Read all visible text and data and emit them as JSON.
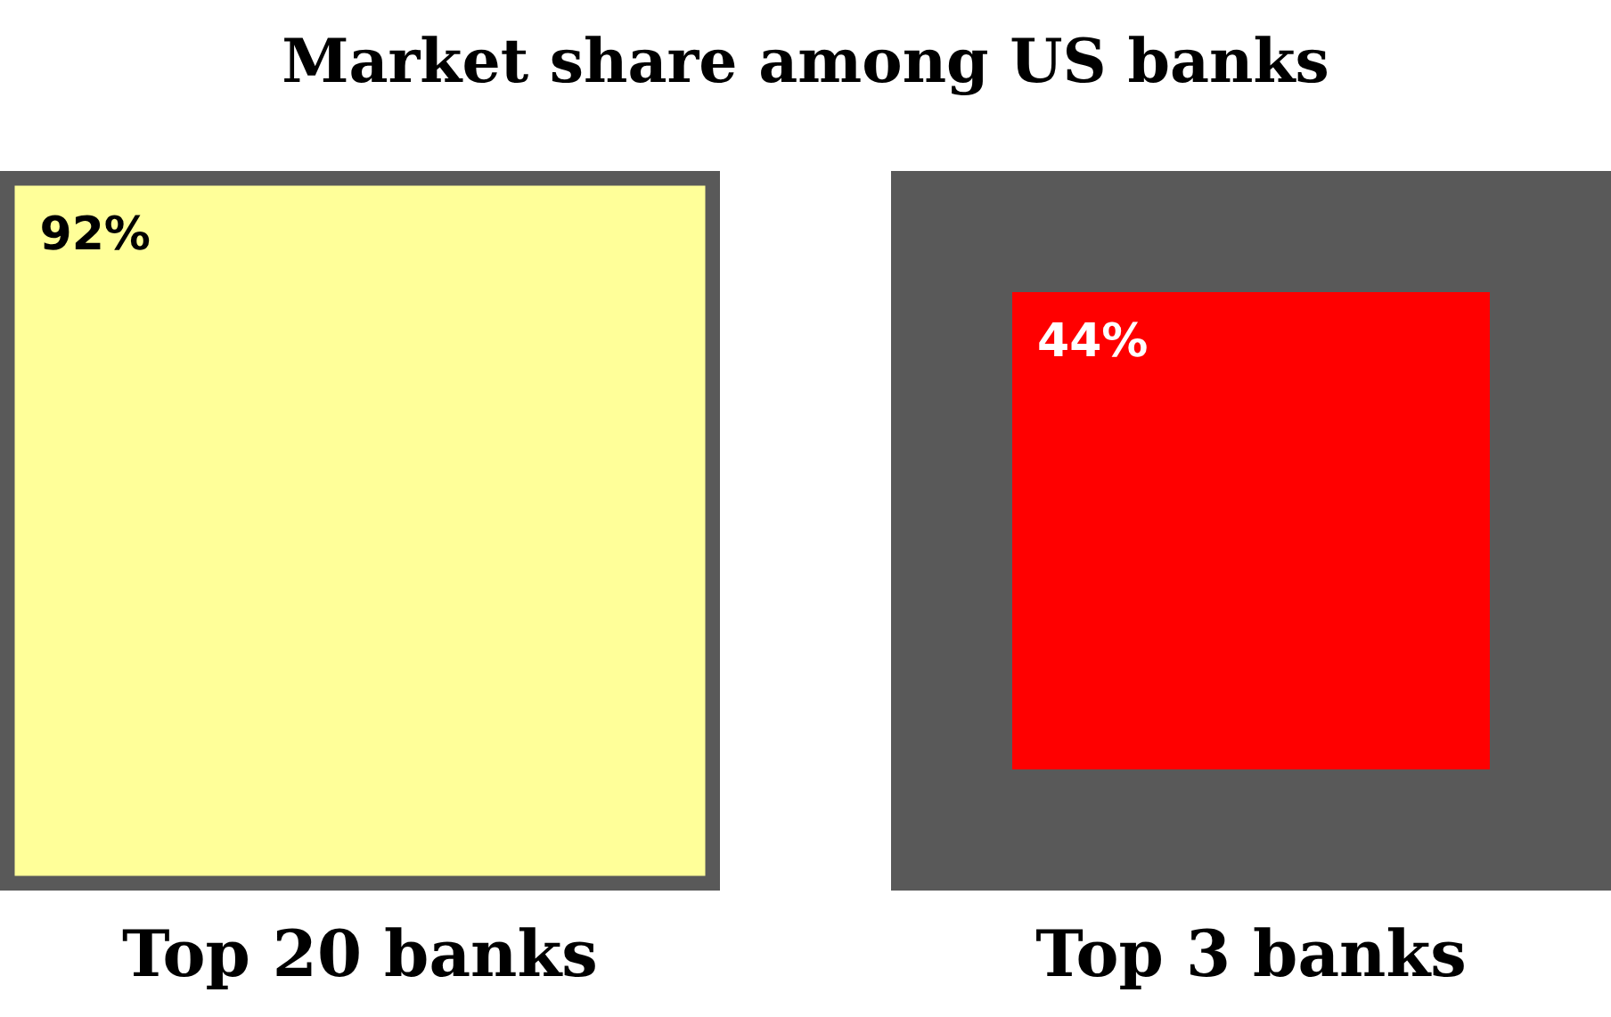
{
  "chart_data": {
    "type": "other",
    "title": "Market share among US banks",
    "categories": [
      "Top 20 banks",
      "Top 3 banks"
    ],
    "values": [
      92,
      44
    ],
    "colors": [
      "#ffff99",
      "#ff0000"
    ],
    "value_labels": [
      "92%",
      "44%"
    ]
  }
}
